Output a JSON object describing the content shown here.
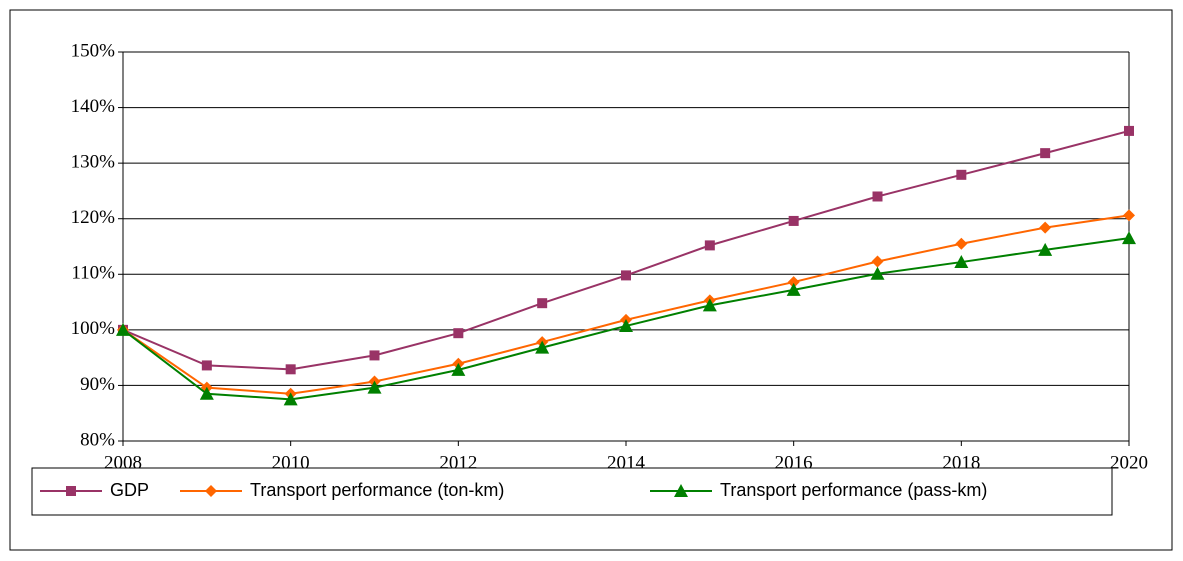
{
  "chart_data": {
    "type": "line",
    "x": [
      2008,
      2009,
      2010,
      2011,
      2012,
      2013,
      2014,
      2015,
      2016,
      2017,
      2018,
      2019,
      2020
    ],
    "series": [
      {
        "name": "GDP",
        "color": "#993366",
        "marker": "square",
        "values": [
          100,
          93.6,
          92.9,
          95.4,
          99.4,
          104.8,
          109.8,
          115.2,
          119.6,
          124,
          127.9,
          131.8,
          135.8
        ]
      },
      {
        "name": "Transport performance (ton-km)",
        "color": "#ff6600",
        "marker": "diamond",
        "values": [
          100,
          89.6,
          88.5,
          90.7,
          93.9,
          97.8,
          101.8,
          105.3,
          108.6,
          112.3,
          115.5,
          118.4,
          120.6
        ]
      },
      {
        "name": "Transport performance (pass-km)",
        "color": "#008000",
        "marker": "triangle",
        "values": [
          100,
          88.5,
          87.5,
          89.6,
          92.8,
          96.8,
          100.7,
          104.4,
          107.2,
          110.1,
          112.2,
          114.4,
          116.5
        ]
      }
    ],
    "xlim": [
      2008,
      2020
    ],
    "xticks": [
      2008,
      2010,
      2012,
      2014,
      2016,
      2018,
      2020
    ],
    "ylim": [
      80,
      150
    ],
    "yticks": [
      {
        "value": 80,
        "label": "80%"
      },
      {
        "value": 90,
        "label": "90%"
      },
      {
        "value": 100,
        "label": "100%"
      },
      {
        "value": 110,
        "label": "110%"
      },
      {
        "value": 120,
        "label": "120%"
      },
      {
        "value": 130,
        "label": "130%"
      },
      {
        "value": 140,
        "label": "140%"
      },
      {
        "value": 150,
        "label": "150%"
      }
    ],
    "grid": true,
    "legend": "bottom"
  }
}
